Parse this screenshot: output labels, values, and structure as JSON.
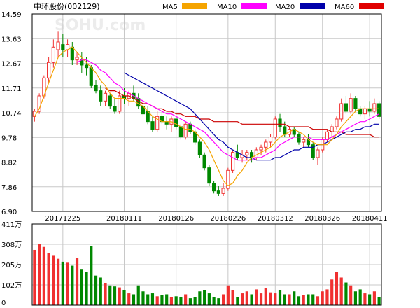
{
  "header": {
    "title": "中环股份(002129)",
    "watermark": "SOHU.com"
  },
  "legend": [
    {
      "label": "MA5",
      "color": "#f5a400"
    },
    {
      "label": "MA10",
      "color": "#ff00ff"
    },
    {
      "label": "MA20",
      "color": "#0000aa"
    },
    {
      "label": "MA60",
      "color": "#e00000"
    }
  ],
  "colors": {
    "up": "#f03030",
    "down": "#008800",
    "grid": "#c8c8c8",
    "axis": "#000000",
    "ma5": "#f5a400",
    "ma10": "#ff00ff",
    "ma20": "#0000aa",
    "ma60": "#cc0000"
  },
  "chart_data": [
    {
      "type": "candlestick",
      "title": "",
      "price_ticks": [
        "14.59",
        "13.63",
        "12.67",
        "11.71",
        "10.74",
        "9.78",
        "8.82",
        "7.86",
        "6.90"
      ],
      "ylim": [
        6.9,
        14.59
      ],
      "date_labels": [
        {
          "label": "20171225",
          "index": 6
        },
        {
          "label": "20180111",
          "index": 19
        },
        {
          "label": "20180126",
          "index": 30
        },
        {
          "label": "20180226",
          "index": 41
        },
        {
          "label": "20180312",
          "index": 51
        },
        {
          "label": "20180326",
          "index": 61
        },
        {
          "label": "20180411",
          "index": 71
        }
      ],
      "ohlc": [
        [
          10.6,
          10.9,
          10.4,
          10.8
        ],
        [
          10.8,
          11.5,
          10.7,
          11.4
        ],
        [
          11.4,
          12.2,
          11.3,
          12.1
        ],
        [
          12.1,
          12.9,
          11.9,
          12.7
        ],
        [
          12.7,
          13.6,
          12.5,
          13.3
        ],
        [
          13.2,
          13.9,
          12.9,
          13.5
        ],
        [
          13.4,
          13.8,
          12.9,
          13.2
        ],
        [
          13.2,
          13.6,
          12.9,
          13.4
        ],
        [
          13.3,
          13.5,
          12.6,
          12.8
        ],
        [
          12.8,
          13.1,
          12.6,
          12.9
        ],
        [
          12.8,
          13.1,
          12.3,
          12.6
        ],
        [
          12.6,
          12.9,
          12.2,
          12.5
        ],
        [
          12.5,
          12.6,
          11.7,
          11.8
        ],
        [
          11.8,
          12.0,
          11.5,
          11.6
        ],
        [
          11.6,
          11.8,
          11.0,
          11.2
        ],
        [
          11.2,
          11.6,
          11.0,
          11.5
        ],
        [
          11.4,
          11.5,
          10.9,
          11.0
        ],
        [
          11.0,
          11.3,
          10.7,
          10.8
        ],
        [
          10.8,
          11.6,
          10.7,
          11.4
        ],
        [
          11.4,
          11.7,
          11.1,
          11.3
        ],
        [
          11.3,
          11.6,
          11.0,
          11.5
        ],
        [
          11.5,
          11.8,
          11.2,
          11.3
        ],
        [
          11.3,
          11.5,
          10.9,
          11.0
        ],
        [
          11.0,
          11.3,
          10.6,
          10.7
        ],
        [
          10.8,
          11.0,
          10.3,
          10.4
        ],
        [
          10.4,
          10.6,
          10.0,
          10.1
        ],
        [
          10.1,
          10.8,
          10.0,
          10.6
        ],
        [
          10.6,
          10.8,
          10.3,
          10.4
        ],
        [
          10.4,
          10.6,
          10.1,
          10.3
        ],
        [
          10.3,
          10.6,
          10.0,
          10.5
        ],
        [
          10.5,
          10.6,
          10.1,
          10.2
        ],
        [
          10.2,
          10.3,
          9.7,
          9.8
        ],
        [
          9.8,
          10.4,
          9.7,
          10.3
        ],
        [
          10.3,
          10.4,
          9.9,
          10.0
        ],
        [
          10.0,
          10.1,
          9.5,
          9.6
        ],
        [
          9.6,
          9.7,
          9.0,
          9.1
        ],
        [
          9.1,
          9.2,
          8.5,
          8.6
        ],
        [
          8.6,
          8.7,
          7.9,
          8.0
        ],
        [
          8.0,
          8.1,
          7.6,
          7.7
        ],
        [
          7.7,
          7.9,
          7.5,
          7.6
        ],
        [
          7.6,
          8.0,
          7.5,
          7.8
        ],
        [
          7.8,
          8.6,
          7.7,
          8.5
        ],
        [
          8.5,
          9.3,
          8.4,
          9.2
        ],
        [
          9.2,
          9.5,
          8.9,
          9.0
        ],
        [
          9.0,
          9.3,
          8.8,
          9.1
        ],
        [
          9.1,
          9.3,
          8.9,
          9.2
        ],
        [
          9.2,
          9.3,
          8.8,
          9.0
        ],
        [
          9.0,
          9.4,
          8.9,
          9.3
        ],
        [
          9.3,
          9.5,
          9.1,
          9.4
        ],
        [
          9.4,
          9.7,
          9.2,
          9.6
        ],
        [
          9.6,
          9.9,
          9.4,
          9.8
        ],
        [
          9.8,
          10.6,
          9.7,
          10.5
        ],
        [
          10.5,
          10.7,
          10.0,
          10.2
        ],
        [
          10.2,
          10.4,
          9.8,
          9.9
        ],
        [
          9.9,
          10.2,
          9.8,
          10.1
        ],
        [
          10.1,
          10.2,
          9.8,
          9.9
        ],
        [
          9.9,
          10.0,
          9.5,
          9.6
        ],
        [
          9.6,
          9.8,
          9.4,
          9.7
        ],
        [
          9.7,
          9.9,
          9.4,
          9.5
        ],
        [
          9.5,
          9.6,
          8.9,
          9.0
        ],
        [
          9.0,
          9.4,
          8.7,
          9.3
        ],
        [
          9.3,
          9.8,
          9.2,
          9.7
        ],
        [
          9.7,
          10.1,
          9.6,
          10.0
        ],
        [
          10.0,
          10.3,
          9.8,
          10.2
        ],
        [
          10.2,
          10.6,
          10.1,
          10.5
        ],
        [
          10.5,
          11.3,
          10.4,
          11.1
        ],
        [
          11.1,
          11.4,
          10.7,
          10.8
        ],
        [
          10.8,
          11.5,
          10.7,
          11.3
        ],
        [
          11.3,
          11.4,
          10.8,
          10.9
        ],
        [
          10.9,
          11.0,
          10.6,
          10.7
        ],
        [
          10.7,
          11.0,
          10.5,
          10.9
        ],
        [
          10.9,
          11.2,
          10.6,
          10.8
        ],
        [
          10.8,
          11.3,
          10.7,
          11.1
        ],
        [
          11.1,
          11.2,
          10.5,
          10.6
        ]
      ],
      "ma5": [
        10.6,
        10.9,
        11.4,
        11.9,
        12.4,
        12.9,
        13.1,
        13.2,
        13.3,
        13.1,
        12.9,
        12.7,
        12.5,
        12.3,
        12.0,
        11.8,
        11.5,
        11.3,
        11.3,
        11.3,
        11.2,
        11.2,
        11.1,
        11.0,
        10.8,
        10.6,
        10.5,
        10.4,
        10.4,
        10.4,
        10.3,
        10.2,
        10.1,
        10.1,
        10.0,
        9.8,
        9.6,
        9.3,
        8.9,
        8.5,
        8.1,
        7.9,
        8.0,
        8.3,
        8.5,
        8.8,
        9.0,
        9.1,
        9.2,
        9.3,
        9.4,
        9.6,
        9.8,
        9.9,
        10.0,
        10.1,
        10.0,
        9.9,
        9.7,
        9.6,
        9.5,
        9.5,
        9.5,
        9.7,
        9.9,
        10.2,
        10.4,
        10.6,
        10.8,
        10.9,
        10.9,
        10.9,
        10.9,
        10.9
      ],
      "ma10": [
        null,
        null,
        null,
        null,
        null,
        null,
        null,
        null,
        null,
        12.7,
        12.8,
        12.8,
        12.7,
        12.6,
        12.4,
        12.3,
        12.1,
        11.9,
        11.8,
        11.6,
        11.5,
        11.4,
        11.3,
        11.2,
        11.1,
        11.0,
        10.9,
        10.8,
        10.7,
        10.7,
        10.6,
        10.5,
        10.4,
        10.3,
        10.2,
        10.1,
        10.0,
        9.8,
        9.6,
        9.4,
        9.2,
        9.1,
        9.0,
        8.9,
        8.9,
        8.9,
        8.9,
        9.0,
        9.0,
        9.1,
        9.2,
        9.3,
        9.5,
        9.6,
        9.7,
        9.8,
        9.8,
        9.8,
        9.8,
        9.7,
        9.7,
        9.7,
        9.7,
        9.8,
        9.9,
        10.0,
        10.1,
        10.2,
        10.3,
        10.4,
        10.4,
        10.5,
        10.6,
        10.7
      ],
      "ma20": [
        null,
        null,
        null,
        null,
        null,
        null,
        null,
        null,
        null,
        null,
        null,
        null,
        null,
        null,
        null,
        null,
        null,
        null,
        null,
        12.3,
        12.2,
        12.1,
        12.0,
        11.9,
        11.8,
        11.7,
        11.6,
        11.5,
        11.4,
        11.3,
        11.2,
        11.1,
        11.0,
        10.9,
        10.7,
        10.5,
        10.3,
        10.1,
        9.9,
        9.7,
        9.6,
        9.4,
        9.3,
        9.2,
        9.1,
        9.0,
        9.0,
        8.9,
        8.9,
        8.9,
        8.9,
        9.0,
        9.0,
        9.1,
        9.2,
        9.3,
        9.3,
        9.4,
        9.4,
        9.4,
        9.5,
        9.5,
        9.6,
        9.7,
        9.8,
        9.9,
        10.0,
        10.0,
        10.1,
        10.1,
        10.2,
        10.2,
        10.3,
        10.3
      ],
      "ma60": [
        null,
        null,
        null,
        null,
        null,
        null,
        null,
        null,
        null,
        null,
        null,
        null,
        null,
        null,
        null,
        11.7,
        11.6,
        11.6,
        11.5,
        11.4,
        11.4,
        11.3,
        11.2,
        11.1,
        11.1,
        11.0,
        10.9,
        10.9,
        10.8,
        10.8,
        10.7,
        10.7,
        10.6,
        10.6,
        10.6,
        10.5,
        10.5,
        10.5,
        10.4,
        10.4,
        10.4,
        10.4,
        10.4,
        10.4,
        10.3,
        10.3,
        10.3,
        10.3,
        10.3,
        10.3,
        10.3,
        10.3,
        10.3,
        10.3,
        10.2,
        10.2,
        10.2,
        10.2,
        10.2,
        10.1,
        10.1,
        10.1,
        10.1,
        10.0,
        10.0,
        10.0,
        9.9,
        9.9,
        9.9,
        9.9,
        9.9,
        9.9,
        9.8,
        9.8
      ]
    },
    {
      "type": "bar",
      "title": "",
      "volume_ticks": [
        "411万",
        "308万",
        "205万",
        "102万",
        "0"
      ],
      "ylim": [
        0,
        411
      ],
      "values": [
        280,
        310,
        295,
        265,
        250,
        235,
        220,
        215,
        200,
        240,
        180,
        170,
        300,
        150,
        140,
        110,
        100,
        95,
        90,
        75,
        60,
        55,
        100,
        70,
        55,
        60,
        45,
        50,
        55,
        40,
        45,
        40,
        55,
        35,
        40,
        70,
        75,
        60,
        40,
        35,
        55,
        100,
        75,
        40,
        60,
        70,
        55,
        80,
        60,
        85,
        65,
        60,
        75,
        55,
        55,
        70,
        45,
        50,
        55,
        55,
        45,
        70,
        80,
        130,
        170,
        140,
        115,
        100,
        70,
        80,
        60,
        55,
        70,
        40
      ]
    }
  ]
}
